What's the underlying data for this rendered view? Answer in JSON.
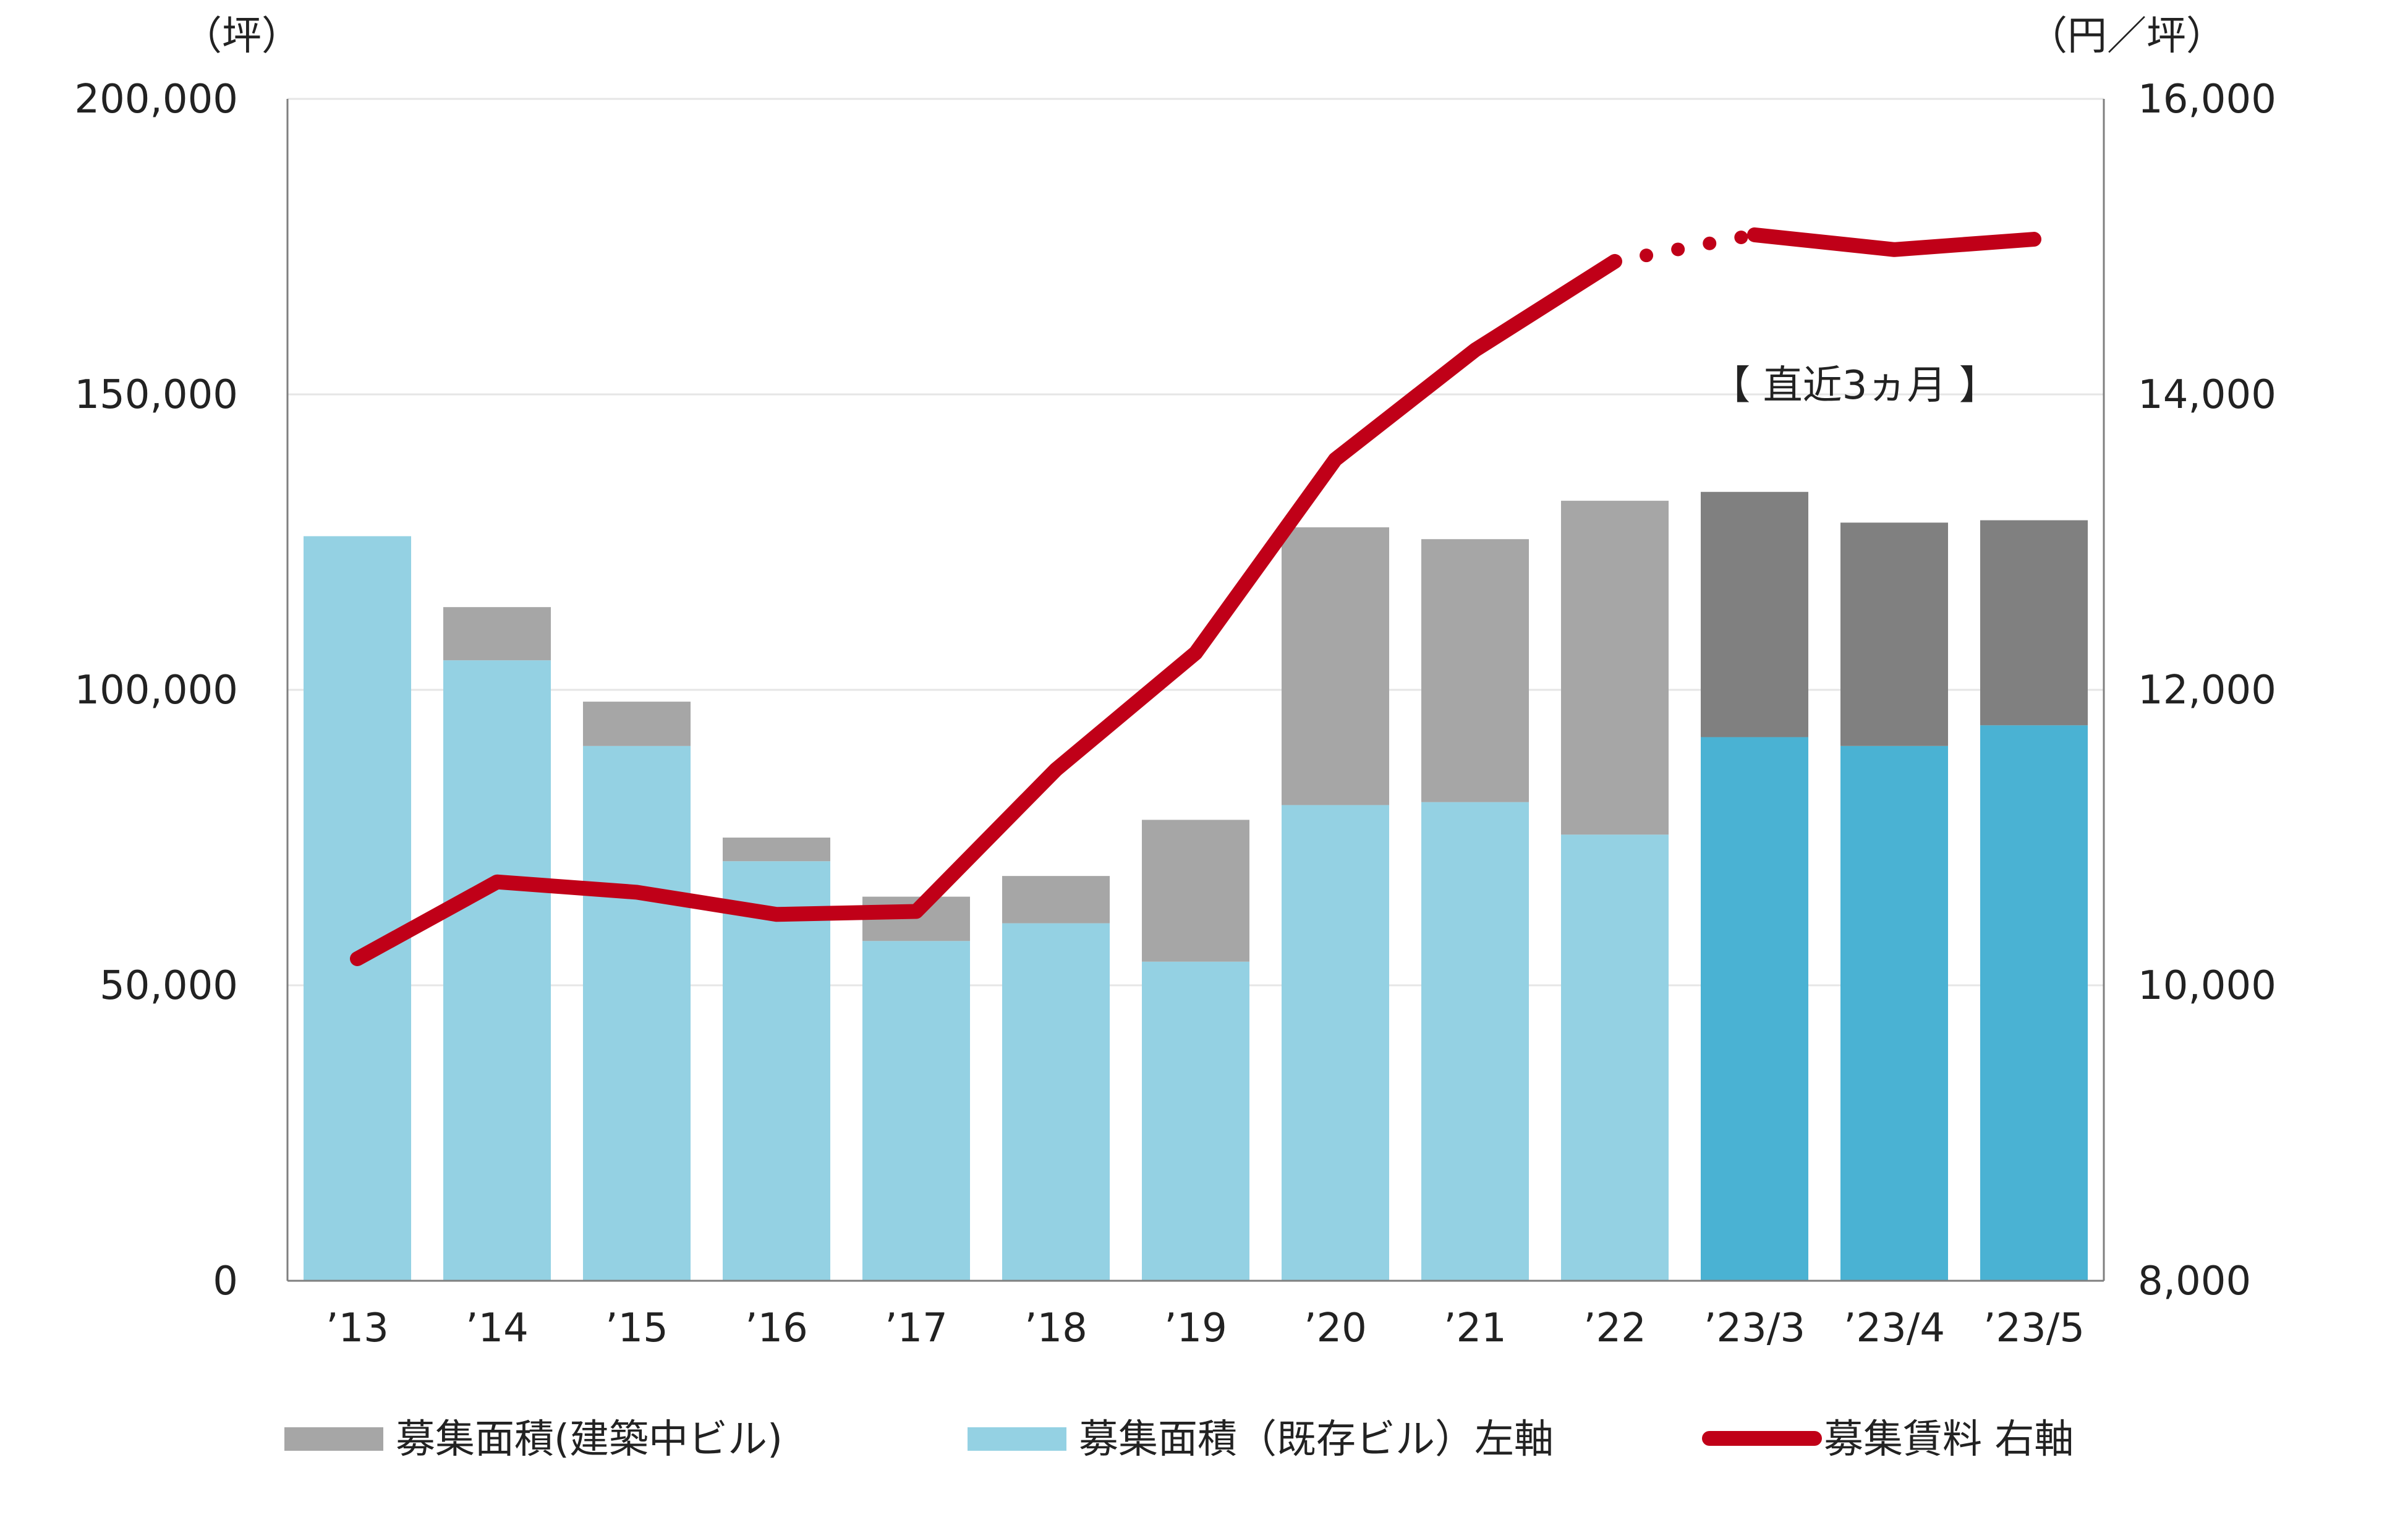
{
  "chart_data": {
    "type": "bar",
    "categories": [
      "’13",
      "’14",
      "’15",
      "’16",
      "’17",
      "’18",
      "’19",
      "’20",
      "’21",
      "’22",
      "’23/3",
      "’23/4",
      "’23/5"
    ],
    "series": [
      {
        "name": "募集面積（既存ビル）左軸",
        "kind": "bar-stacked",
        "axis": "left",
        "values": [
          126000,
          105000,
          90500,
          71000,
          57500,
          60500,
          54000,
          80500,
          81000,
          75500,
          92000,
          90500,
          94000
        ]
      },
      {
        "name": "募集面積(建築中ビル)",
        "kind": "bar-stacked",
        "axis": "left",
        "values": [
          0,
          9000,
          7500,
          4000,
          7500,
          8000,
          24000,
          47000,
          44500,
          56500,
          41500,
          37800,
          34700
        ]
      },
      {
        "name": "募集賃料 右軸",
        "kind": "line",
        "axis": "right",
        "values": [
          10180,
          10700,
          10630,
          10480,
          10500,
          11460,
          12250,
          13560,
          14300,
          14900,
          15080,
          14980,
          15050
        ]
      }
    ],
    "y_left": {
      "unit": "（坪）",
      "ylim": [
        0,
        200000
      ],
      "ticks": [
        "0",
        "50,000",
        "100,000",
        "150,000",
        "200,000"
      ]
    },
    "y_right": {
      "unit": "（円／坪）",
      "ylim": [
        8000,
        16000
      ],
      "ticks": [
        "8,000",
        "10,000",
        "12,000",
        "14,000",
        "16,000"
      ]
    },
    "annotation": "【 直近3ヵ月 】",
    "grid": true,
    "legend_position": "bottom",
    "colors": {
      "existing_annual": "#94D1E3",
      "existing_recent": "#4AB2D3",
      "construction_annual": "#A6A6A6",
      "construction_recent": "#808080",
      "rent_line": "#C00018",
      "grid": "#E6E6E6",
      "axis": "#7F7F7F"
    }
  },
  "legend": {
    "construction": "募集面積(建築中ビル)",
    "existing": "募集面積（既存ビル）左軸",
    "rent": "募集賃料 右軸"
  }
}
